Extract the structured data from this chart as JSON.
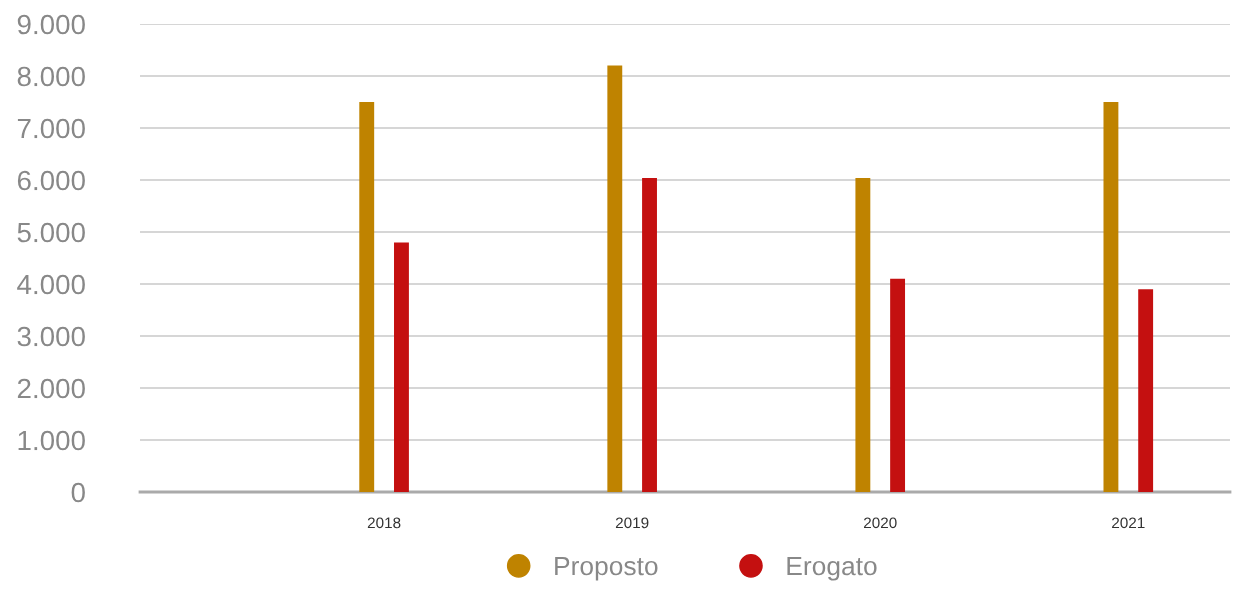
{
  "chart_data": {
    "type": "bar",
    "categories": [
      "2018",
      "2019",
      "2020",
      "2021"
    ],
    "series": [
      {
        "name": "Proposto",
        "color": "#bf8300",
        "values": [
          7500,
          8200,
          6040,
          7500
        ]
      },
      {
        "name": "Erogato",
        "color": "#c41010",
        "values": [
          4800,
          6040,
          4100,
          3900
        ]
      }
    ],
    "ylim": [
      0,
      9000
    ],
    "yticks": [
      0,
      {
        "value": 1000,
        "label": "1.000"
      },
      {
        "value": 2000,
        "label": "2.000"
      },
      {
        "value": 3000,
        "label": "3.000"
      },
      {
        "value": 4000,
        "label": "4.000"
      },
      {
        "value": 5000,
        "label": "5.000"
      },
      {
        "value": 6000,
        "label": "6.000"
      },
      {
        "value": 7000,
        "label": "7.000"
      },
      {
        "value": 8000,
        "label": "8.000"
      },
      {
        "value": 9000,
        "label": "9.000"
      }
    ],
    "grid": "y",
    "legend": "bottom"
  }
}
